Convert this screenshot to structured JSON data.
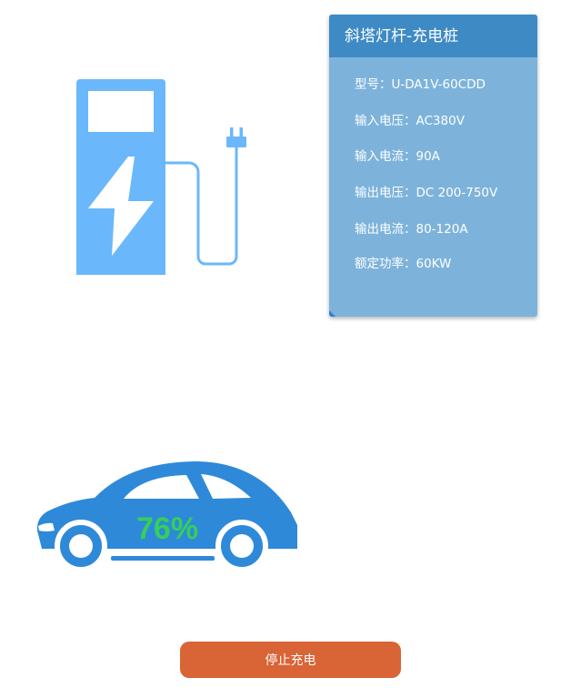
{
  "info_card": {
    "title": "斜塔灯杆-充电桩",
    "specs": [
      {
        "label": "型号：",
        "value": "U-DA1V-60CDD"
      },
      {
        "label": "输入电压：",
        "value": "AC380V"
      },
      {
        "label": "输入电流：",
        "value": "90A"
      },
      {
        "label": "输出电压：",
        "value": "DC 200-750V"
      },
      {
        "label": "输出电流：",
        "value": "80-120A"
      },
      {
        "label": "额定功率：",
        "value": "60KW"
      }
    ]
  },
  "vehicle": {
    "charge_percent_label": "76%",
    "charge_level": 76
  },
  "actions": {
    "stop_label": "停止充电"
  },
  "colors": {
    "charger_blue": "#6ab8fb",
    "car_blue": "#2e89d9",
    "percent_green": "#35cf5a",
    "card_bg": "#7db3db",
    "card_header": "#3d8ac5",
    "button": "#d96436"
  },
  "icons": [
    "charging-station-icon",
    "lightning-bolt-icon",
    "plug-icon",
    "car-icon"
  ]
}
